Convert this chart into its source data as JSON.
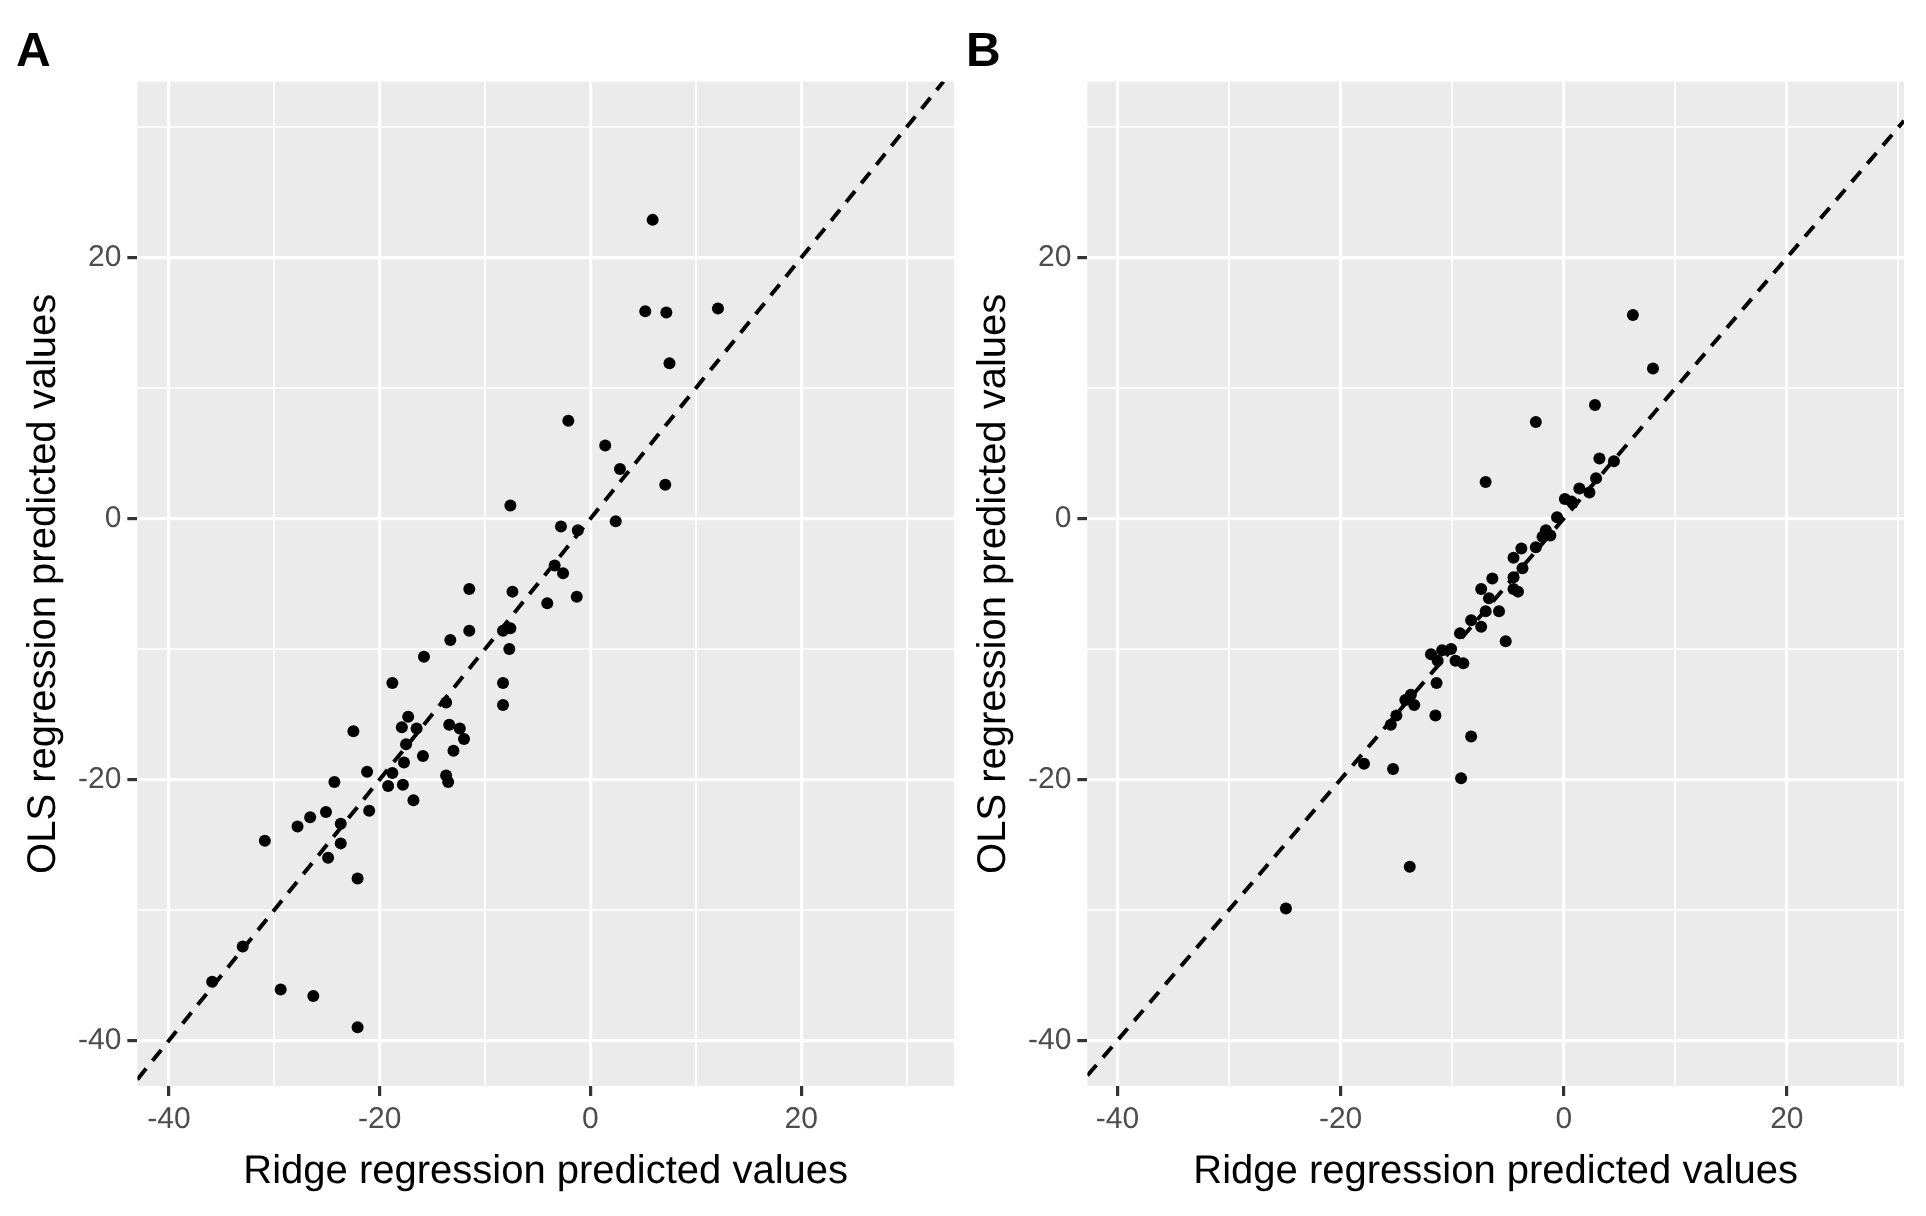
{
  "chart_data": [
    {
      "type": "scatter",
      "title": "A",
      "xlabel": "Ridge regression predicted values",
      "ylabel": "OLS regression predicted values",
      "xlim": [
        -43,
        34.5
      ],
      "ylim": [
        -43.5,
        33.5
      ],
      "xticks": [
        -40,
        {
          "value": -30,
          "label": null
        },
        -20,
        {
          "value": -10,
          "label": null
        },
        0,
        {
          "value": 10,
          "label": null
        },
        20,
        {
          "value": 30,
          "label": null
        }
      ],
      "yticks": [
        {
          "value": -30,
          "label": null
        },
        -40,
        -20,
        {
          "value": -10,
          "label": null
        },
        0,
        {
          "value": 10,
          "label": null
        },
        20,
        {
          "value": 30,
          "label": null
        }
      ],
      "grid": true,
      "legend": false,
      "series": [
        {
          "type": "scatter",
          "color": "#000000",
          "marker": "circle",
          "x": [
            -7.6,
            -2.8,
            -1.2,
            2.4,
            -3.4,
            -2.6,
            -1.3,
            -4.1,
            -11.5,
            -7.4,
            -11.5,
            -13.3,
            -8.3,
            -7.6,
            -7.7,
            -15.8,
            -18.8,
            -8.3,
            -8.3,
            -13.7,
            -17.3,
            -17.9,
            -16.5,
            -13.4,
            -12.4,
            -12.0,
            -22.5,
            -17.5,
            -15.9,
            -13.0,
            -17.7,
            -21.2,
            -18.8,
            -13.7,
            -13.5,
            -19.2,
            -17.8,
            -24.3,
            -16.8,
            -21.0,
            -25.1,
            -26.6,
            -27.8,
            -23.7,
            -30.9,
            -23.7,
            -24.9,
            -22.1,
            -33.0,
            -35.9,
            -29.4,
            -26.3,
            -22.1,
            5.9,
            5.2,
            7.2,
            12.1,
            7.5,
            -2.1,
            1.4,
            2.8,
            7.1
          ],
          "values": [
            1.0,
            -0.6,
            -0.9,
            -0.2,
            -3.6,
            -4.2,
            -6.0,
            -6.5,
            -5.4,
            -5.6,
            -8.6,
            -9.3,
            -8.6,
            -8.4,
            -10.0,
            -10.6,
            -12.6,
            -12.6,
            -14.3,
            -14.1,
            -15.2,
            -16.0,
            -16.1,
            -15.8,
            -16.1,
            -16.9,
            -16.3,
            -17.3,
            -18.2,
            -17.8,
            -18.7,
            -19.4,
            -19.5,
            -19.7,
            -20.2,
            -20.5,
            -20.4,
            -20.2,
            -21.6,
            -22.4,
            -22.5,
            -22.9,
            -23.6,
            -23.4,
            -24.7,
            -24.9,
            -26.0,
            -27.6,
            -32.8,
            -35.5,
            -36.1,
            -36.6,
            -39.0,
            22.9,
            15.9,
            15.8,
            16.1,
            11.9,
            7.5,
            5.6,
            3.8,
            2.6
          ]
        },
        {
          "type": "line",
          "color": "#000000",
          "marker": "none",
          "line_style": "dashed",
          "x": [
            -43,
            33.5
          ],
          "values": [
            -43,
            33.5
          ]
        }
      ]
    },
    {
      "type": "scatter",
      "title": "B",
      "xlabel": "Ridge regression predicted values",
      "ylabel": "OLS regression predicted values",
      "xlim": [
        -42.7,
        30.5
      ],
      "ylim": [
        -43.5,
        33.5
      ],
      "xticks": [
        -40,
        {
          "value": -30,
          "label": null
        },
        -20,
        {
          "value": -10,
          "label": null
        },
        0,
        {
          "value": 10,
          "label": null
        },
        20,
        {
          "value": 30,
          "label": null
        }
      ],
      "yticks": [
        {
          "value": -30,
          "label": null
        },
        -40,
        -20,
        {
          "value": -10,
          "label": null
        },
        0,
        {
          "value": 10,
          "label": null
        },
        20,
        {
          "value": 30,
          "label": null
        }
      ],
      "grid": true,
      "legend": false,
      "series": [
        {
          "type": "scatter",
          "color": "#000000",
          "marker": "circle",
          "x": [
            0.7,
            -0.6,
            -1.6,
            -1.9,
            -3.8,
            -2.5,
            -4.5,
            -3.7,
            -4.5,
            -6.4,
            -7.4,
            -4.1,
            -6.7,
            -5.8,
            -7.0,
            -8.3,
            -7.4,
            -9.3,
            -5.2,
            -11.9,
            -10.9,
            -10.1,
            -11.3,
            -9.7,
            -9.0,
            -11.4,
            -13.7,
            -14.2,
            -13.4,
            -15.0,
            -11.5,
            -15.5,
            -8.3,
            -17.9,
            -15.3,
            -9.2,
            -13.8,
            -24.9,
            6.2,
            8.0,
            2.8,
            -2.5,
            -7.0,
            3.2,
            4.5,
            2.9,
            1.4,
            2.3,
            0.1,
            0.8,
            -1.2,
            -4.5
          ],
          "values": [
            1.3,
            0.1,
            -0.9,
            -1.4,
            -2.3,
            -2.2,
            -3.0,
            -3.8,
            -4.5,
            -4.6,
            -5.4,
            -5.6,
            -6.1,
            -7.1,
            -7.1,
            -7.8,
            -8.3,
            -8.8,
            -9.4,
            -10.4,
            -10.1,
            -10.0,
            -10.9,
            -10.9,
            -11.1,
            -12.6,
            -13.5,
            -13.9,
            -14.3,
            -15.1,
            -15.1,
            -15.8,
            -16.7,
            -18.8,
            -19.2,
            -19.9,
            -26.7,
            -29.9,
            15.6,
            11.5,
            8.7,
            7.4,
            2.8,
            4.6,
            4.4,
            3.1,
            2.3,
            2.0,
            1.5,
            1.2,
            -1.3,
            -5.4
          ]
        },
        {
          "type": "line",
          "color": "#000000",
          "marker": "none",
          "line_style": "dashed",
          "x": [
            -42.7,
            30.5
          ],
          "values": [
            -42.7,
            30.5
          ]
        }
      ]
    }
  ]
}
